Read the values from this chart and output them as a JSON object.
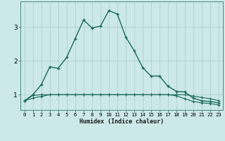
{
  "xlabel": "Humidex (Indice chaleur)",
  "background_color": "#cce8e8",
  "grid_color": "#aacccc",
  "line_color": "#1a6b5a",
  "x_values": [
    0,
    1,
    2,
    3,
    4,
    5,
    6,
    7,
    8,
    9,
    10,
    11,
    12,
    13,
    14,
    15,
    16,
    17,
    18,
    19,
    20,
    21,
    22,
    23
  ],
  "line1": [
    0.82,
    0.98,
    1.0,
    1.0,
    1.0,
    1.0,
    1.0,
    1.0,
    1.0,
    1.0,
    1.0,
    1.0,
    1.0,
    1.0,
    1.0,
    1.0,
    1.0,
    1.0,
    1.0,
    1.0,
    0.96,
    0.92,
    0.88,
    0.83
  ],
  "line2": [
    0.82,
    0.9,
    0.95,
    1.0,
    1.0,
    1.0,
    1.0,
    1.0,
    1.0,
    1.0,
    1.0,
    1.0,
    1.0,
    1.0,
    1.0,
    1.0,
    1.0,
    1.0,
    0.97,
    0.88,
    0.8,
    0.76,
    0.74,
    0.7
  ],
  "line3": [
    0.82,
    1.0,
    1.3,
    1.82,
    1.78,
    2.1,
    2.65,
    3.2,
    2.97,
    3.02,
    3.48,
    3.38,
    2.7,
    2.3,
    1.8,
    1.55,
    1.55,
    1.25,
    1.1,
    1.08,
    0.9,
    0.82,
    0.8,
    0.76
  ],
  "ylim": [
    0.55,
    3.75
  ],
  "xlim": [
    -0.5,
    23.5
  ],
  "yticks": [
    1,
    2,
    3
  ],
  "xticks": [
    0,
    1,
    2,
    3,
    4,
    5,
    6,
    7,
    8,
    9,
    10,
    11,
    12,
    13,
    14,
    15,
    16,
    17,
    18,
    19,
    20,
    21,
    22,
    23
  ],
  "xlabel_fontsize": 6.0,
  "tick_fontsize": 5.2
}
